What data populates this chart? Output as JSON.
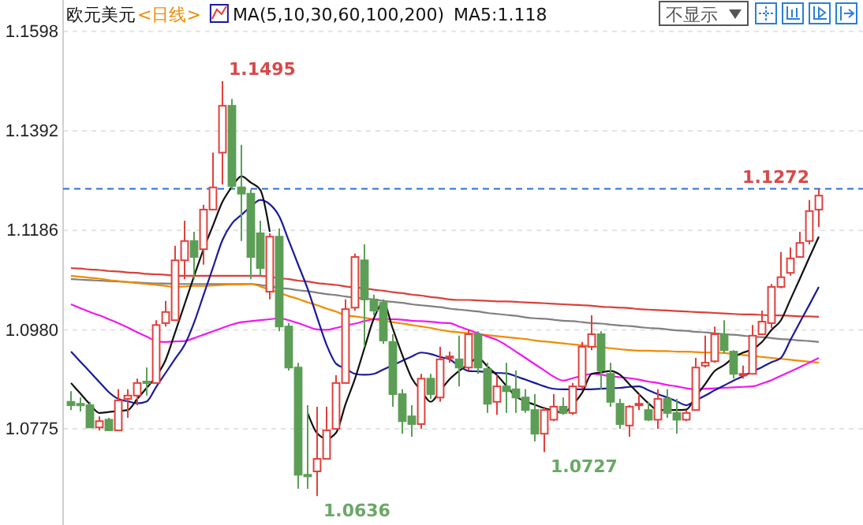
{
  "chart_data": {
    "type": "candlestick",
    "title": "欧元美元",
    "subtitle": "<日线>",
    "categories": [
      null,
      null,
      null,
      null,
      null,
      null,
      null,
      null,
      null,
      null,
      null,
      null,
      null,
      null,
      null,
      null,
      null,
      null,
      null,
      null,
      null,
      null,
      null,
      null,
      null,
      null,
      null,
      null,
      null,
      null,
      null,
      null,
      null,
      null,
      null,
      null,
      null,
      null,
      null,
      null,
      null,
      null,
      null,
      null,
      null,
      null,
      null,
      null,
      null,
      null,
      null,
      null,
      null,
      null,
      null,
      null,
      null,
      null,
      null,
      null,
      null,
      null,
      null,
      null,
      null,
      null,
      null,
      null,
      null,
      null,
      null,
      null,
      null,
      null,
      null,
      null,
      null,
      null,
      null,
      null
    ],
    "ohlc": [
      [
        1.0831,
        1.0853,
        1.0814,
        1.0824
      ],
      [
        1.0827,
        1.084,
        1.0811,
        1.0824
      ],
      [
        1.0824,
        1.0831,
        1.0778,
        1.0778
      ],
      [
        1.0778,
        1.0801,
        1.0772,
        1.0791
      ],
      [
        1.0794,
        1.0798,
        1.0772,
        1.0772
      ],
      [
        1.0772,
        1.0857,
        1.0772,
        1.0834
      ],
      [
        1.0837,
        1.0857,
        1.0798,
        1.0844
      ],
      [
        1.0844,
        1.0879,
        1.0824,
        1.087
      ],
      [
        1.0873,
        1.0902,
        1.0844,
        1.087
      ],
      [
        1.087,
        1.1,
        1.087,
        1.099
      ],
      [
        1.0994,
        1.104,
        1.0987,
        1.1017
      ],
      [
        1.1,
        1.1154,
        1.1,
        1.1124
      ],
      [
        1.1124,
        1.1206,
        1.1085,
        1.1164
      ],
      [
        1.1164,
        1.1183,
        1.1085,
        1.1131
      ],
      [
        1.1147,
        1.1239,
        1.1115,
        1.1229
      ],
      [
        1.1229,
        1.1347,
        1.1229,
        1.1275
      ],
      [
        1.1347,
        1.1495,
        1.1281,
        1.1444
      ],
      [
        1.1444,
        1.1458,
        1.1271,
        1.1278
      ],
      [
        1.1275,
        1.1363,
        1.1164,
        1.1262
      ],
      [
        1.1262,
        1.1271,
        1.1085,
        1.1131
      ],
      [
        1.118,
        1.1206,
        1.1092,
        1.1108
      ],
      [
        1.1059,
        1.118,
        1.1043,
        1.1173
      ],
      [
        1.1173,
        1.119,
        1.0977,
        1.0987
      ],
      [
        1.0987,
        1.0994,
        1.0896,
        1.0902
      ],
      [
        1.0902,
        1.0912,
        1.0651,
        1.068
      ],
      [
        1.068,
        1.0824,
        1.0651,
        1.0677
      ],
      [
        1.0687,
        1.0821,
        1.0636,
        1.0713
      ],
      [
        1.0713,
        1.0821,
        1.0713,
        1.0772
      ],
      [
        1.0775,
        1.0886,
        1.0775,
        1.087
      ],
      [
        1.087,
        1.1043,
        1.087,
        1.1023
      ],
      [
        1.1026,
        1.1138,
        1.102,
        1.1131
      ],
      [
        1.1124,
        1.1157,
        1.0945,
        1.1043
      ],
      [
        1.1043,
        1.1053,
        1.101,
        1.102
      ],
      [
        1.1036,
        1.1043,
        1.0951,
        1.0958
      ],
      [
        1.0955,
        1.0971,
        1.0821,
        1.0847
      ],
      [
        1.0847,
        1.0857,
        1.0765,
        1.0791
      ],
      [
        1.0801,
        1.0824,
        1.0759,
        1.0785
      ],
      [
        1.0785,
        1.0889,
        1.0775,
        1.0879
      ],
      [
        1.0879,
        1.0889,
        1.0837,
        1.0847
      ],
      [
        1.084,
        1.0945,
        1.0831,
        1.0919
      ],
      [
        1.0922,
        1.0935,
        1.0912,
        1.0925
      ],
      [
        1.0919,
        1.0968,
        1.0863,
        1.0902
      ],
      [
        1.0902,
        1.0981,
        1.0896,
        1.0971
      ],
      [
        1.0971,
        1.0977,
        1.0889,
        1.0902
      ],
      [
        1.0899,
        1.0912,
        1.0808,
        1.0827
      ],
      [
        1.0831,
        1.0886,
        1.0804,
        1.0863
      ],
      [
        1.0863,
        1.0912,
        1.0808,
        1.0853
      ],
      [
        1.0857,
        1.0896,
        1.0808,
        1.084
      ],
      [
        1.084,
        1.0857,
        1.0808,
        1.0814
      ],
      [
        1.0814,
        1.0847,
        1.0749,
        1.0765
      ],
      [
        1.0765,
        1.0821,
        1.0727,
        1.0814
      ],
      [
        1.0794,
        1.0847,
        1.0791,
        1.0821
      ],
      [
        1.0821,
        1.084,
        1.0804,
        1.0808
      ],
      [
        1.0808,
        1.087,
        1.0804,
        1.0863
      ],
      [
        1.0863,
        1.0955,
        1.0857,
        1.0945
      ],
      [
        1.0945,
        1.101,
        1.0938,
        1.0971
      ],
      [
        1.0971,
        1.0977,
        1.0857,
        1.0896
      ],
      [
        1.0889,
        1.0912,
        1.0821,
        1.0831
      ],
      [
        1.0827,
        1.0837,
        1.0775,
        1.0785
      ],
      [
        1.0782,
        1.0824,
        1.0759,
        1.0821
      ],
      [
        1.0827,
        1.0847,
        1.0814,
        1.0827
      ],
      [
        1.0814,
        1.0831,
        1.0791,
        1.0794
      ],
      [
        1.0794,
        1.0857,
        1.0775,
        1.0837
      ],
      [
        1.0837,
        1.0857,
        1.0798,
        1.0808
      ],
      [
        1.0808,
        1.0837,
        1.0765,
        1.0794
      ],
      [
        1.0794,
        1.0814,
        1.0791,
        1.0808
      ],
      [
        1.0814,
        1.0922,
        1.0814,
        1.0902
      ],
      [
        1.0906,
        1.0968,
        1.0902,
        1.0912
      ],
      [
        1.0915,
        1.0987,
        1.0912,
        1.0971
      ],
      [
        1.0971,
        1.1,
        1.0932,
        1.0938
      ],
      [
        1.0935,
        1.0938,
        1.0879,
        1.0889
      ],
      [
        1.0886,
        1.0906,
        1.0879,
        1.0889
      ],
      [
        1.0889,
        1.099,
        1.0889,
        1.0968
      ],
      [
        1.0971,
        1.102,
        1.0971,
        1.0997
      ],
      [
        1.0994,
        1.1075,
        1.0984,
        1.1069
      ],
      [
        1.1069,
        1.1141,
        1.1066,
        1.1089
      ],
      [
        1.1098,
        1.1151,
        1.1092,
        1.1128
      ],
      [
        1.1131,
        1.1183,
        1.1131,
        1.116
      ],
      [
        1.1164,
        1.1249,
        1.1157,
        1.1226
      ],
      [
        1.1229,
        1.1272,
        1.1193,
        1.1258
      ]
    ],
    "series": [
      {
        "type": "line",
        "color": "#d9413a",
        "values": [
          1.1108,
          1.1107,
          1.1105,
          1.1104,
          1.1102,
          1.1101,
          1.1099,
          1.1098,
          1.1096,
          1.1095,
          1.1094,
          1.1092,
          1.1092,
          1.1092,
          1.1092,
          1.1092,
          1.1092,
          1.1092,
          1.1092,
          1.1092,
          1.1092,
          1.109,
          1.1087,
          1.1085,
          1.1082,
          1.108,
          1.1077,
          1.1075,
          1.1073,
          1.107,
          1.1068,
          1.1066,
          1.1063,
          1.1061,
          1.1058,
          1.1056,
          1.1053,
          1.1051,
          1.1048,
          1.1046,
          1.1043,
          1.1042,
          1.1042,
          1.1041,
          1.104,
          1.1039,
          1.1039,
          1.1038,
          1.1037,
          1.1036,
          1.1035,
          1.1034,
          1.1033,
          1.1032,
          1.1031,
          1.103,
          1.1028,
          1.1027,
          1.1026,
          1.1025,
          1.1023,
          1.1022,
          1.1021,
          1.102,
          1.1019,
          1.1018,
          1.1017,
          1.1016,
          1.1015,
          1.1014,
          1.1013,
          1.1012,
          1.1012,
          1.1011,
          1.101,
          1.101,
          1.1009,
          1.1008,
          1.1008,
          1.1007
        ]
      },
      {
        "type": "line",
        "color": "#808080",
        "values": [
          1.1085,
          1.1084,
          1.1083,
          1.1082,
          1.1081,
          1.108,
          1.1079,
          1.1078,
          1.1077,
          1.1076,
          1.1076,
          1.1075,
          1.1075,
          1.1075,
          1.1075,
          1.1075,
          1.1075,
          1.1075,
          1.1075,
          1.1075,
          1.1073,
          1.107,
          1.1067,
          1.1065,
          1.1062,
          1.106,
          1.1057,
          1.1054,
          1.1052,
          1.1049,
          1.1047,
          1.1045,
          1.1043,
          1.104,
          1.1038,
          1.1036,
          1.1033,
          1.1031,
          1.1029,
          1.1027,
          1.1024,
          1.1022,
          1.102,
          1.1018,
          1.1015,
          1.1013,
          1.1011,
          1.1009,
          1.1006,
          1.1004,
          1.1003,
          1.1001,
          1.0999,
          1.0998,
          1.0996,
          1.0994,
          1.0993,
          1.0991,
          1.0989,
          1.0988,
          1.0986,
          1.0984,
          1.0983,
          1.0981,
          1.0979,
          1.0978,
          1.0976,
          1.0975,
          1.0973,
          1.0971,
          1.097,
          1.0968,
          1.0966,
          1.0965,
          1.0963,
          1.0961,
          1.096,
          1.0958,
          1.0957,
          1.0955
        ]
      },
      {
        "type": "line",
        "color": "#f08c00",
        "values": [
          1.1092,
          1.109,
          1.1088,
          1.1086,
          1.1083,
          1.1081,
          1.1079,
          1.1077,
          1.1075,
          1.1073,
          1.1071,
          1.1069,
          1.107,
          1.1071,
          1.1071,
          1.1072,
          1.1073,
          1.1074,
          1.1074,
          1.1075,
          1.107,
          1.1063,
          1.1057,
          1.105,
          1.1044,
          1.1037,
          1.1031,
          1.1024,
          1.1018,
          1.101,
          1.1008,
          1.1005,
          1.1002,
          1.0999,
          1.0996,
          1.0993,
          1.099,
          1.0987,
          1.0984,
          1.098,
          1.0977,
          1.0975,
          1.0973,
          1.0971,
          1.0969,
          1.0967,
          1.0965,
          1.0963,
          1.0961,
          1.0958,
          1.0956,
          1.0954,
          1.0952,
          1.095,
          1.0948,
          1.0946,
          1.0944,
          1.0942,
          1.094,
          1.0938,
          1.0937,
          1.0937,
          1.0936,
          1.0936,
          1.0935,
          1.0935,
          1.0934,
          1.0933,
          1.0933,
          1.0932,
          1.093,
          1.0928,
          1.0926,
          1.0924,
          1.0922,
          1.092,
          1.0918,
          1.0916,
          1.0914,
          1.0912
        ]
      },
      {
        "type": "line",
        "color": "#f018f0",
        "values": [
          1.1033,
          1.1025,
          1.1017,
          1.101,
          1.1002,
          1.0994,
          1.0985,
          1.0975,
          1.0966,
          1.0957,
          1.0955,
          1.0956,
          1.0957,
          1.0963,
          1.097,
          1.0977,
          1.0984,
          1.0991,
          1.0996,
          1.0998,
          1.1,
          1.1002,
          1.1004,
          1.1,
          1.0994,
          1.0987,
          1.0981,
          1.098,
          1.0984,
          1.0989,
          1.0993,
          1.0998,
          1.1002,
          1.1003,
          1.1002,
          1.1001,
          1.0999,
          1.0998,
          1.0997,
          1.0995,
          1.0994,
          1.0987,
          1.098,
          1.0973,
          1.0966,
          1.0959,
          1.0948,
          1.0935,
          1.0922,
          1.0909,
          1.0896,
          1.0883,
          1.0875,
          1.088,
          1.0885,
          1.0889,
          1.0887,
          1.0884,
          1.0882,
          1.088,
          1.0877,
          1.0873,
          1.087,
          1.0866,
          1.0863,
          1.0859,
          1.0857,
          1.0858,
          1.0859,
          1.086,
          1.0861,
          1.0862,
          1.0863,
          1.0869,
          1.0876,
          1.0885,
          1.0894,
          1.0903,
          1.0912,
          1.0922
        ]
      },
      {
        "type": "line",
        "color": "#1a1a9c",
        "values": [
          1.0935,
          1.0914,
          1.0893,
          1.0872,
          1.0851,
          1.0837,
          1.0832,
          1.0828,
          1.0832,
          1.0862,
          1.0891,
          1.092,
          1.0949,
          1.0995,
          1.1052,
          1.1109,
          1.1166,
          1.12,
          1.1218,
          1.1235,
          1.1249,
          1.124,
          1.1215,
          1.1165,
          1.1115,
          1.1065,
          1.1006,
          1.0949,
          1.091,
          1.09,
          1.0889,
          1.0887,
          1.0889,
          1.0898,
          1.0907,
          1.0916,
          1.0925,
          1.0933,
          1.093,
          1.0924,
          1.0919,
          1.0905,
          1.0895,
          1.0894,
          1.0893,
          1.0891,
          1.089,
          1.0884,
          1.0877,
          1.087,
          1.0863,
          1.0858,
          1.0857,
          1.0857,
          1.0857,
          1.0857,
          1.0858,
          1.0859,
          1.086,
          1.0862,
          1.0863,
          1.0855,
          1.0847,
          1.084,
          1.0832,
          1.0824,
          1.0834,
          1.0844,
          1.0855,
          1.0865,
          1.0875,
          1.0884,
          1.0894,
          1.0903,
          1.0913,
          1.0922,
          1.0959,
          1.0996,
          1.1032,
          1.1069
        ]
      },
      {
        "type": "line",
        "color": "#111111",
        "values": [
          1.087,
          1.0848,
          1.0826,
          1.0808,
          1.081,
          1.0812,
          1.0814,
          1.0837,
          1.086,
          1.0884,
          1.0918,
          1.0975,
          1.1033,
          1.1091,
          1.1147,
          1.1196,
          1.1245,
          1.1276,
          1.1298,
          1.1285,
          1.127,
          1.1183,
          null,
          null,
          null,
          1.0808,
          1.0766,
          1.0755,
          1.0767,
          1.0826,
          1.0879,
          1.0942,
          1.1004,
          1.1036,
          1.0982,
          1.0928,
          1.088,
          1.0854,
          1.0831,
          1.0854,
          1.0878,
          1.0895,
          1.0909,
          1.0922,
          1.0904,
          1.0886,
          1.0864,
          1.0842,
          1.0832,
          1.0825,
          1.0818,
          1.0813,
          1.0808,
          1.0825,
          1.085,
          1.0889,
          1.0892,
          1.0895,
          1.0887,
          1.0867,
          1.0847,
          1.0828,
          1.0814,
          1.0814,
          1.0814,
          1.0815,
          1.0842,
          1.0868,
          1.0895,
          1.0907,
          1.0923,
          1.0933,
          1.094,
          1.0955,
          1.098,
          1.1,
          1.1043,
          1.1086,
          1.113,
          1.1173
        ]
      }
    ],
    "ylim": [
      1.0576,
      1.1663
    ],
    "yticks": [
      {
        "value": 1.0775,
        "label": "1.0775"
      },
      {
        "value": 1.098,
        "label": "1.0980"
      },
      {
        "value": 1.1186,
        "label": "1.1186"
      },
      {
        "value": 1.1392,
        "label": "1.1392"
      },
      {
        "value": 1.1598,
        "label": "1.1598"
      }
    ],
    "grid": "y",
    "ref_lines": [
      {
        "axis": "y",
        "value": 1.1272,
        "color": "#2a6fd6",
        "line_style": "dashed"
      }
    ],
    "annotations": [
      "1.1495",
      "1.0636",
      "1.0727",
      "1.1272",
      "MA(5,10,30,60,100,200)",
      "MA5:1.118",
      "不显示"
    ]
  }
}
